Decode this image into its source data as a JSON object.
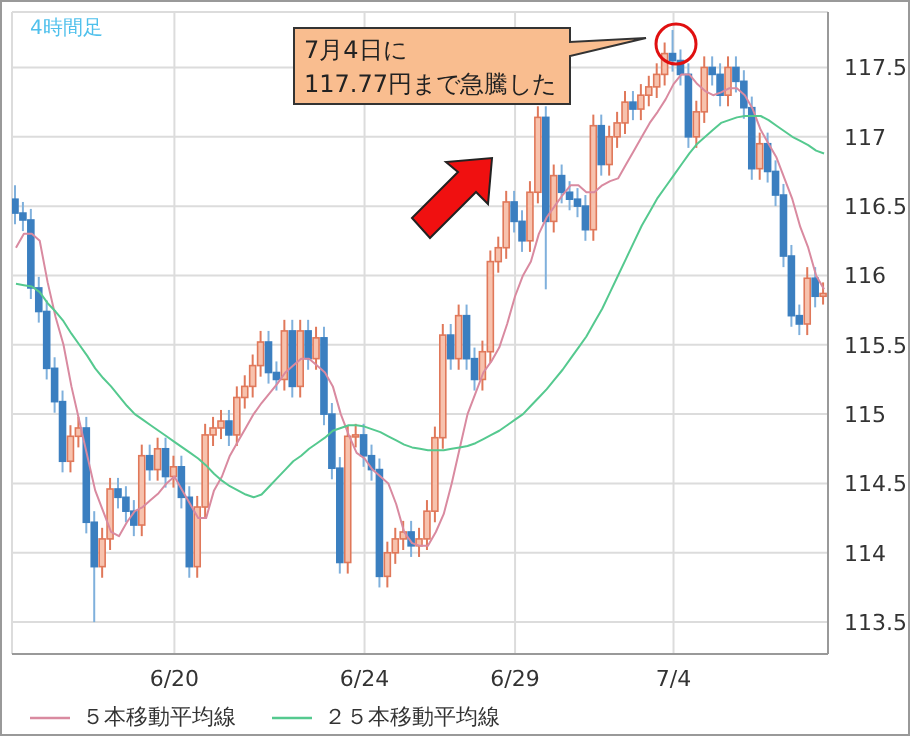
{
  "chart_data": {
    "type": "candlestick",
    "subtitle": "4時間足",
    "categories": [
      null,
      null,
      null,
      null,
      null,
      null,
      null,
      null,
      null,
      null,
      null,
      null,
      null,
      null,
      null,
      null,
      null,
      null,
      null,
      null,
      "6/20",
      null,
      null,
      null,
      null,
      null,
      null,
      null,
      null,
      null,
      null,
      null,
      null,
      null,
      null,
      null,
      null,
      null,
      null,
      null,
      null,
      null,
      null,
      null,
      "6/24",
      null,
      null,
      null,
      null,
      null,
      null,
      null,
      null,
      null,
      null,
      null,
      null,
      null,
      null,
      null,
      null,
      null,
      null,
      "6/29",
      null,
      null,
      null,
      null,
      null,
      null,
      null,
      null,
      null,
      null,
      null,
      null,
      null,
      null,
      null,
      null,
      null,
      null,
      null,
      "7/4",
      null,
      null,
      null,
      null,
      null,
      null,
      null,
      null,
      null,
      null,
      null,
      null,
      null,
      null,
      null,
      null,
      null,
      null,
      null
    ],
    "ohlc": [
      [
        116.55,
        116.65,
        116.37,
        116.45
      ],
      [
        116.45,
        116.53,
        116.32,
        116.4
      ],
      [
        116.4,
        116.48,
        115.83,
        115.91
      ],
      [
        115.91,
        115.99,
        115.66,
        115.74
      ],
      [
        115.74,
        115.82,
        115.25,
        115.33
      ],
      [
        115.33,
        115.41,
        115.01,
        115.09
      ],
      [
        115.09,
        115.17,
        114.58,
        114.66
      ],
      [
        114.66,
        114.92,
        114.58,
        114.84
      ],
      [
        114.84,
        114.98,
        114.76,
        114.9
      ],
      [
        114.9,
        114.98,
        114.14,
        114.22
      ],
      [
        114.22,
        114.3,
        113.5,
        113.9
      ],
      [
        113.9,
        114.18,
        113.82,
        114.1
      ],
      [
        114.1,
        114.54,
        114.02,
        114.46
      ],
      [
        114.46,
        114.54,
        114.32,
        114.4
      ],
      [
        114.4,
        114.48,
        114.22,
        114.3
      ],
      [
        114.3,
        114.38,
        114.12,
        114.2
      ],
      [
        114.2,
        114.78,
        114.12,
        114.7
      ],
      [
        114.7,
        114.78,
        114.52,
        114.6
      ],
      [
        114.6,
        114.83,
        114.52,
        114.75
      ],
      [
        114.75,
        114.83,
        114.47,
        114.55
      ],
      [
        114.55,
        114.7,
        114.47,
        114.62
      ],
      [
        114.62,
        114.7,
        114.32,
        114.4
      ],
      [
        114.4,
        114.48,
        113.82,
        113.9
      ],
      [
        113.9,
        114.41,
        113.82,
        114.33
      ],
      [
        114.33,
        114.93,
        114.25,
        114.85
      ],
      [
        114.85,
        114.98,
        114.77,
        114.9
      ],
      [
        114.9,
        115.03,
        114.82,
        114.95
      ],
      [
        114.95,
        115.03,
        114.77,
        114.85
      ],
      [
        114.85,
        115.2,
        114.77,
        115.12
      ],
      [
        115.12,
        115.28,
        115.04,
        115.2
      ],
      [
        115.2,
        115.43,
        115.12,
        115.35
      ],
      [
        115.35,
        115.6,
        115.27,
        115.52
      ],
      [
        115.52,
        115.6,
        115.22,
        115.3
      ],
      [
        115.3,
        115.38,
        115.17,
        115.25
      ],
      [
        115.25,
        115.68,
        115.17,
        115.6
      ],
      [
        115.6,
        115.68,
        115.12,
        115.2
      ],
      [
        115.2,
        115.68,
        115.12,
        115.6
      ],
      [
        115.6,
        115.68,
        115.32,
        115.4
      ],
      [
        115.4,
        115.63,
        115.32,
        115.55
      ],
      [
        115.55,
        115.63,
        114.92,
        115.0
      ],
      [
        115.0,
        115.08,
        114.53,
        114.61
      ],
      [
        114.61,
        114.69,
        113.85,
        113.93
      ],
      [
        113.93,
        114.92,
        113.85,
        114.84
      ],
      [
        114.84,
        114.93,
        114.76,
        114.85
      ],
      [
        114.85,
        114.93,
        114.62,
        114.7
      ],
      [
        114.7,
        114.78,
        114.52,
        114.6
      ],
      [
        114.6,
        114.68,
        113.75,
        113.83
      ],
      [
        113.83,
        114.08,
        113.75,
        114.0
      ],
      [
        114.0,
        114.18,
        113.92,
        114.1
      ],
      [
        114.1,
        114.23,
        114.02,
        114.15
      ],
      [
        114.15,
        114.23,
        113.97,
        114.05
      ],
      [
        114.05,
        114.18,
        113.97,
        114.1
      ],
      [
        114.1,
        114.38,
        114.02,
        114.3
      ],
      [
        114.3,
        114.91,
        114.22,
        114.83
      ],
      [
        114.83,
        115.65,
        114.75,
        115.57
      ],
      [
        115.57,
        115.65,
        115.32,
        115.4
      ],
      [
        115.4,
        115.79,
        115.32,
        115.71
      ],
      [
        115.71,
        115.79,
        115.32,
        115.4
      ],
      [
        115.4,
        115.48,
        115.17,
        115.25
      ],
      [
        115.25,
        115.53,
        115.17,
        115.45
      ],
      [
        115.45,
        116.18,
        115.37,
        116.1
      ],
      [
        116.1,
        116.28,
        116.02,
        116.2
      ],
      [
        116.2,
        116.61,
        116.12,
        116.53
      ],
      [
        116.53,
        116.61,
        116.31,
        116.39
      ],
      [
        116.39,
        116.47,
        116.17,
        116.25
      ],
      [
        116.25,
        116.68,
        116.17,
        116.6
      ],
      [
        116.6,
        117.22,
        116.52,
        117.14
      ],
      [
        117.14,
        117.22,
        115.9,
        116.39
      ],
      [
        116.39,
        116.8,
        116.31,
        116.72
      ],
      [
        116.72,
        116.8,
        116.52,
        116.6
      ],
      [
        116.6,
        116.68,
        116.47,
        116.55
      ],
      [
        116.55,
        116.63,
        116.42,
        116.5
      ],
      [
        116.5,
        116.58,
        116.25,
        116.33
      ],
      [
        116.33,
        117.16,
        116.25,
        117.08
      ],
      [
        117.08,
        117.16,
        116.72,
        116.8
      ],
      [
        116.8,
        117.08,
        116.72,
        117.0
      ],
      [
        117.0,
        117.18,
        116.92,
        117.1
      ],
      [
        117.1,
        117.33,
        117.02,
        117.25
      ],
      [
        117.25,
        117.33,
        117.12,
        117.2
      ],
      [
        117.2,
        117.38,
        117.12,
        117.3
      ],
      [
        117.3,
        117.44,
        117.22,
        117.36
      ],
      [
        117.36,
        117.53,
        117.28,
        117.45
      ],
      [
        117.45,
        117.68,
        117.37,
        117.6
      ],
      [
        117.6,
        117.77,
        117.47,
        117.55
      ],
      [
        117.55,
        117.63,
        117.37,
        117.45
      ],
      [
        117.45,
        117.53,
        116.92,
        117.0
      ],
      [
        117.0,
        117.26,
        116.92,
        117.18
      ],
      [
        117.18,
        117.58,
        117.1,
        117.5
      ],
      [
        117.5,
        117.58,
        117.37,
        117.45
      ],
      [
        117.45,
        117.53,
        117.22,
        117.3
      ],
      [
        117.3,
        117.58,
        117.22,
        117.5
      ],
      [
        117.5,
        117.58,
        117.32,
        117.4
      ],
      [
        117.4,
        117.48,
        117.13,
        117.21
      ],
      [
        117.21,
        117.29,
        116.69,
        116.77
      ],
      [
        116.77,
        117.03,
        116.69,
        116.95
      ],
      [
        116.95,
        117.03,
        116.67,
        116.75
      ],
      [
        116.75,
        116.83,
        116.5,
        116.58
      ],
      [
        116.58,
        116.66,
        116.06,
        116.14
      ],
      [
        116.14,
        116.22,
        115.63,
        115.71
      ],
      [
        115.71,
        115.79,
        115.57,
        115.65
      ],
      [
        115.65,
        116.06,
        115.57,
        115.98
      ],
      [
        115.98,
        116.06,
        115.77,
        115.85
      ],
      [
        115.85,
        115.95,
        115.79,
        115.87
      ]
    ],
    "series": [
      {
        "type": "line",
        "name": "５本移動平均線",
        "color": "#d98aa0",
        "values": [
          116.2,
          116.3,
          116.3,
          116.25,
          115.95,
          115.7,
          115.5,
          115.2,
          114.95,
          114.7,
          114.45,
          114.3,
          114.15,
          114.12,
          114.22,
          114.3,
          114.33,
          114.38,
          114.43,
          114.5,
          114.55,
          114.45,
          114.35,
          114.25,
          114.25,
          114.45,
          114.55,
          114.7,
          114.8,
          114.9,
          115.0,
          115.08,
          115.15,
          115.22,
          115.3,
          115.35,
          115.4,
          115.4,
          115.35,
          115.3,
          115.2,
          115.0,
          114.85,
          114.72,
          114.68,
          114.6,
          114.55,
          114.5,
          114.35,
          114.15,
          114.07,
          114.05,
          114.05,
          114.15,
          114.28,
          114.5,
          114.75,
          115.0,
          115.15,
          115.3,
          115.38,
          115.48,
          115.65,
          115.85,
          116.0,
          116.1,
          116.3,
          116.42,
          116.5,
          116.58,
          116.65,
          116.65,
          116.6,
          116.6,
          116.65,
          116.68,
          116.7,
          116.8,
          116.9,
          117.0,
          117.1,
          117.18,
          117.27,
          117.38,
          117.45,
          117.45,
          117.38,
          117.33,
          117.3,
          117.32,
          117.35,
          117.35,
          117.3,
          117.2,
          117.05,
          116.95,
          116.85,
          116.7,
          116.55,
          116.35,
          116.2,
          116.0,
          115.9
        ]
      },
      {
        "type": "line",
        "name": "２５本移動平均線",
        "color": "#55c98f",
        "values": [
          115.94,
          115.93,
          115.92,
          115.88,
          115.8,
          115.74,
          115.67,
          115.58,
          115.5,
          115.42,
          115.33,
          115.26,
          115.2,
          115.13,
          115.06,
          115.0,
          114.96,
          114.92,
          114.88,
          114.84,
          114.8,
          114.76,
          114.72,
          114.68,
          114.63,
          114.57,
          114.52,
          114.48,
          114.45,
          114.42,
          114.4,
          114.42,
          114.48,
          114.54,
          114.6,
          114.66,
          114.7,
          114.75,
          114.79,
          114.83,
          114.88,
          114.9,
          114.92,
          114.92,
          114.91,
          114.89,
          114.87,
          114.84,
          114.81,
          114.78,
          114.76,
          114.75,
          114.74,
          114.74,
          114.74,
          114.75,
          114.76,
          114.77,
          114.79,
          114.82,
          114.85,
          114.88,
          114.92,
          114.96,
          115.0,
          115.06,
          115.12,
          115.18,
          115.25,
          115.32,
          115.4,
          115.48,
          115.56,
          115.66,
          115.76,
          115.88,
          116.0,
          116.12,
          116.24,
          116.36,
          116.46,
          116.56,
          116.64,
          116.72,
          116.8,
          116.88,
          116.95,
          117.0,
          117.05,
          117.1,
          117.12,
          117.14,
          117.15,
          117.15,
          117.15,
          117.12,
          117.08,
          117.04,
          117.0,
          116.97,
          116.94,
          116.9,
          116.88
        ]
      }
    ],
    "ylim": [
      113.27,
      117.9
    ],
    "yticks": [
      113.5,
      114,
      114.5,
      115,
      115.5,
      116,
      116.5,
      117,
      117.5
    ],
    "grid": true,
    "legend": "bottom",
    "marker": "none",
    "annotations": [
      "7月4日に\n117.77円まで急騰した"
    ]
  }
}
